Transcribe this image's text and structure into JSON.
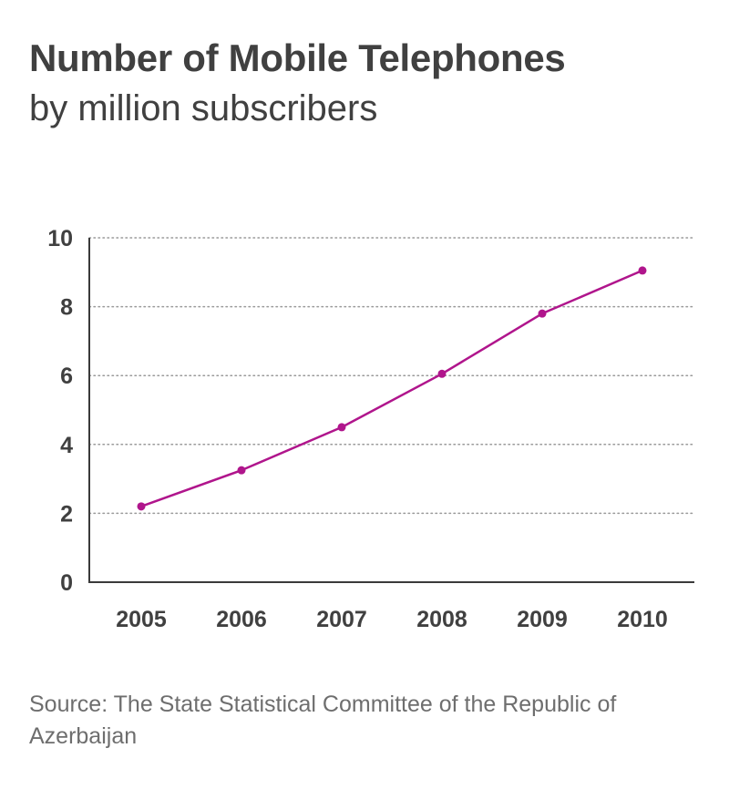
{
  "header": {
    "title": "Number of Mobile Telephones",
    "subtitle": "by million subscribers"
  },
  "footer": {
    "source": "Source: The State Statistical Committee of the Republic of Azerbaijan"
  },
  "colors": {
    "series": "#b0158c",
    "grid": "#9a9a9a",
    "axis": "#3a3a3a",
    "text": "#404040"
  },
  "chart_data": {
    "type": "line",
    "title": "Number of Mobile Telephones",
    "subtitle": "by million subscribers",
    "x": [
      "2005",
      "2006",
      "2007",
      "2008",
      "2009",
      "2010"
    ],
    "series": [
      {
        "values": [
          2.2,
          3.25,
          4.5,
          6.05,
          7.8,
          9.05
        ]
      }
    ],
    "ylim": [
      0,
      10
    ],
    "yticks": [
      "0",
      "2",
      "4",
      "6",
      "8",
      "10"
    ],
    "grid": "horizontal dotted",
    "legend": "none"
  }
}
